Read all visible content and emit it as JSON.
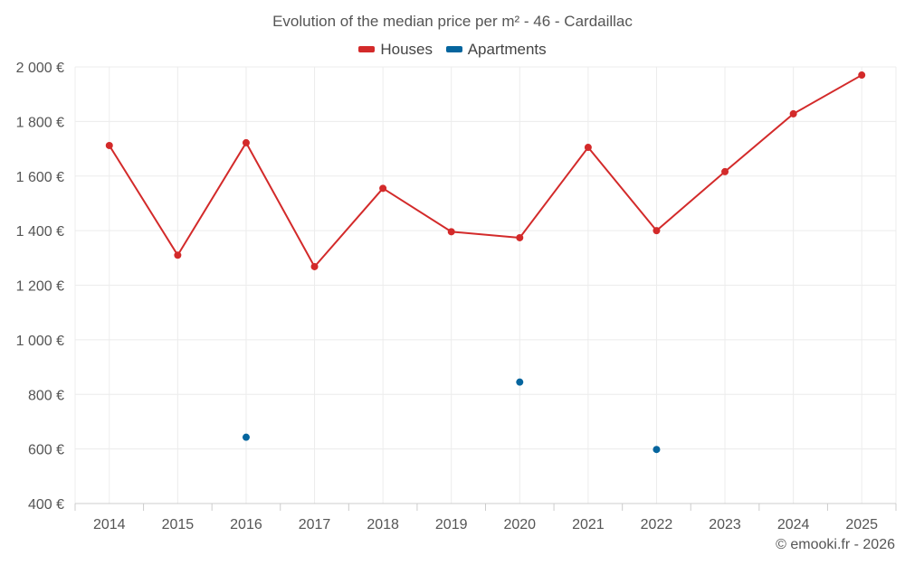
{
  "chart_data": {
    "type": "line",
    "title": "Evolution of the median price per m² - 46 - Cardaillac",
    "xlabel": "",
    "ylabel": "",
    "categories": [
      "2014",
      "2015",
      "2016",
      "2017",
      "2018",
      "2019",
      "2020",
      "2021",
      "2022",
      "2023",
      "2024",
      "2025"
    ],
    "ylim": [
      400,
      2000
    ],
    "yticks": [
      400,
      600,
      800,
      1000,
      1200,
      1400,
      1600,
      1800,
      2000
    ],
    "ytick_labels": [
      "400 €",
      "600 €",
      "800 €",
      "1 000 €",
      "1 200 €",
      "1 400 €",
      "1 600 €",
      "1 800 €",
      "2 000 €"
    ],
    "grid": true,
    "legend_position": "top-center",
    "series": [
      {
        "name": "Houses",
        "color": "#d32a2a",
        "values": [
          1712,
          1310,
          1722,
          1268,
          1555,
          1396,
          1374,
          1705,
          1400,
          1616,
          1828,
          1970
        ]
      },
      {
        "name": "Apartments",
        "color": "#05659e",
        "values": [
          null,
          null,
          643,
          null,
          null,
          null,
          845,
          null,
          598,
          null,
          null,
          null
        ]
      }
    ]
  },
  "credit": "© emooki.fr - 2026"
}
